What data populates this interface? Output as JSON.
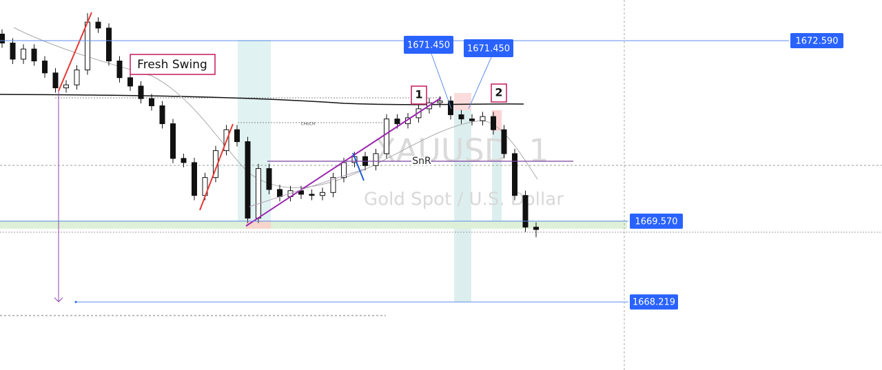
{
  "chart_data": {
    "type": "candlestick",
    "symbol": "XAUUSD, 1",
    "description": "Gold Spot / U.S. Dollar",
    "ylim": [
      1667.08,
      1673.27
    ],
    "open": [
      1672.7,
      1672.55,
      1672.28,
      1672.45,
      1672.25,
      1672.05,
      1671.8,
      1671.85,
      1672.1,
      1672.9,
      1672.8,
      1672.25,
      1671.97,
      1671.83,
      1671.62,
      1671.5,
      1671.2,
      1670.62,
      1670.55,
      1670.0,
      1670.3,
      1670.75,
      1671.1,
      1670.9,
      1669.62,
      1670.45,
      1670.1,
      1669.98,
      1670.08,
      1670.02,
      1670.0,
      1670.05,
      1670.3,
      1670.55,
      1670.65,
      1670.5,
      1670.7,
      1671.28,
      1671.2,
      1671.3,
      1671.45,
      1671.55,
      1671.58,
      1671.35,
      1671.28,
      1671.25,
      1671.32,
      1671.1,
      1670.7,
      1670.0,
      1669.47
    ],
    "high": [
      1672.78,
      1672.63,
      1672.53,
      1672.53,
      1672.33,
      1672.13,
      1671.93,
      1672.18,
      1673.05,
      1672.98,
      1672.88,
      1672.33,
      1672.05,
      1671.91,
      1671.7,
      1671.58,
      1671.28,
      1670.7,
      1670.63,
      1670.38,
      1670.83,
      1671.18,
      1671.18,
      1670.98,
      1670.53,
      1670.53,
      1670.18,
      1670.16,
      1670.16,
      1670.1,
      1670.13,
      1670.38,
      1670.63,
      1670.73,
      1670.73,
      1670.78,
      1671.36,
      1671.36,
      1671.38,
      1671.53,
      1671.63,
      1671.66,
      1671.66,
      1671.43,
      1671.36,
      1671.4,
      1671.4,
      1671.18,
      1670.78,
      1670.08,
      1669.55
    ],
    "low": [
      1672.47,
      1672.2,
      1672.2,
      1672.17,
      1671.97,
      1671.72,
      1671.72,
      1671.77,
      1672.02,
      1672.72,
      1672.17,
      1671.89,
      1671.75,
      1671.54,
      1671.42,
      1671.12,
      1670.54,
      1670.47,
      1669.92,
      1669.92,
      1670.22,
      1670.67,
      1670.82,
      1669.54,
      1669.54,
      1670.02,
      1669.9,
      1669.9,
      1669.94,
      1669.92,
      1669.92,
      1669.97,
      1670.22,
      1670.47,
      1670.42,
      1670.42,
      1670.62,
      1671.12,
      1671.12,
      1671.22,
      1671.37,
      1671.47,
      1671.27,
      1671.2,
      1671.17,
      1671.17,
      1671.02,
      1670.62,
      1669.92,
      1669.39,
      1669.3
    ],
    "close": [
      1672.55,
      1672.28,
      1672.45,
      1672.25,
      1672.05,
      1671.8,
      1671.85,
      1672.1,
      1672.9,
      1672.8,
      1672.25,
      1671.97,
      1671.83,
      1671.62,
      1671.5,
      1671.2,
      1670.62,
      1670.55,
      1670.0,
      1670.3,
      1670.75,
      1671.1,
      1670.9,
      1669.62,
      1670.45,
      1670.1,
      1669.98,
      1670.08,
      1670.02,
      1670.0,
      1670.05,
      1670.3,
      1670.55,
      1670.65,
      1670.5,
      1670.7,
      1671.28,
      1671.2,
      1671.3,
      1671.45,
      1671.55,
      1671.58,
      1671.35,
      1671.28,
      1671.25,
      1671.32,
      1671.1,
      1670.7,
      1670.0,
      1669.47,
      1669.43
    ],
    "levels": [
      {
        "value": 1672.59,
        "label": "1672.590"
      },
      {
        "value": 1669.57,
        "label": "1669.570"
      },
      {
        "value": 1668.219,
        "label": "1668.219"
      }
    ],
    "callouts": [
      {
        "value": 1671.45,
        "label": "1671.450"
      },
      {
        "value": 1671.45,
        "label": "1671.450"
      }
    ],
    "annotations": {
      "swing": "Fresh Swing",
      "point_1": "1",
      "point_2": "2",
      "snr": "SnR",
      "choch": "CHoCH"
    }
  }
}
